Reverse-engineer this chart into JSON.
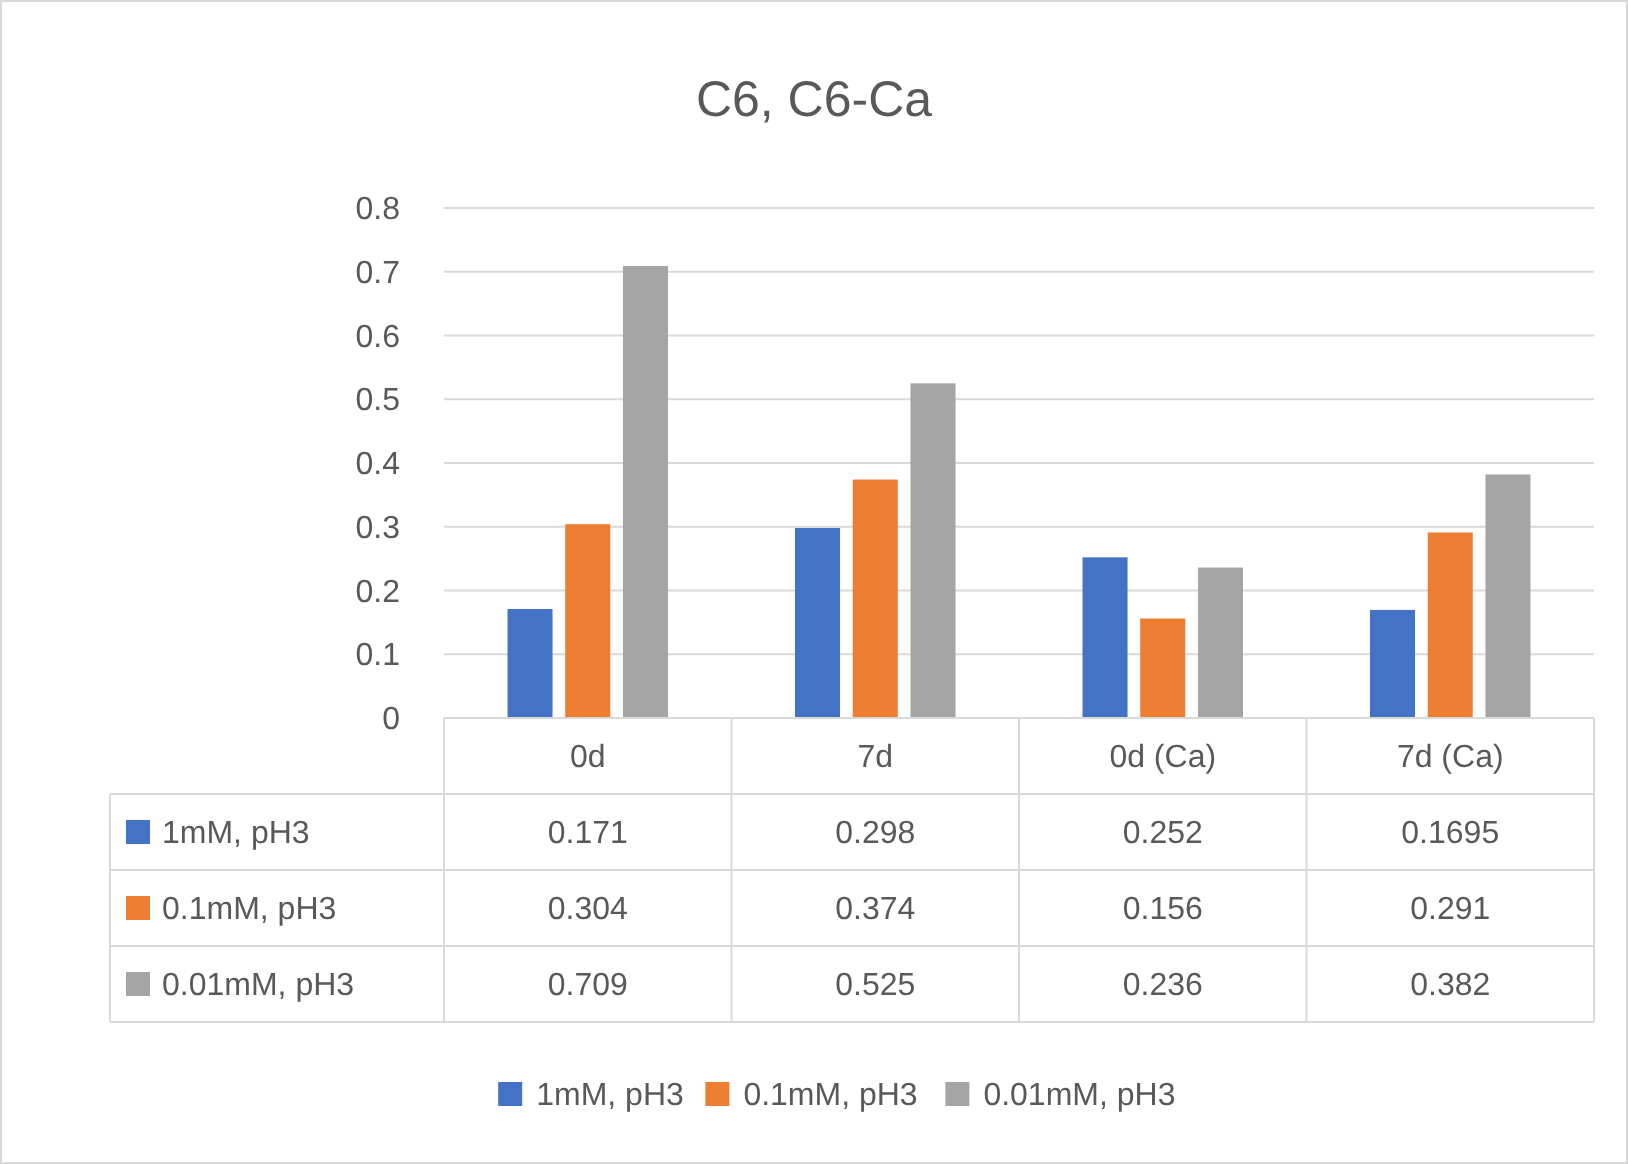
{
  "chart_data": {
    "type": "bar",
    "title": "C6, C6-Ca",
    "categories": [
      "0d",
      "7d",
      "0d (Ca)",
      "7d (Ca)"
    ],
    "series": [
      {
        "name": "1mM, pH3",
        "color": "#4472c4",
        "values": [
          0.171,
          0.298,
          0.252,
          0.1695
        ]
      },
      {
        "name": "0.1mM, pH3",
        "color": "#ed7d31",
        "values": [
          0.304,
          0.374,
          0.156,
          0.291
        ]
      },
      {
        "name": "0.01mM, pH3",
        "color": "#a5a5a5",
        "values": [
          0.709,
          0.525,
          0.236,
          0.382
        ]
      }
    ],
    "ylim": [
      0,
      0.8
    ],
    "yticks": [
      0,
      0.1,
      0.2,
      0.3,
      0.4,
      0.5,
      0.6,
      0.7,
      0.8
    ],
    "grid": "y",
    "legend": "bottom",
    "data_labels": true
  }
}
